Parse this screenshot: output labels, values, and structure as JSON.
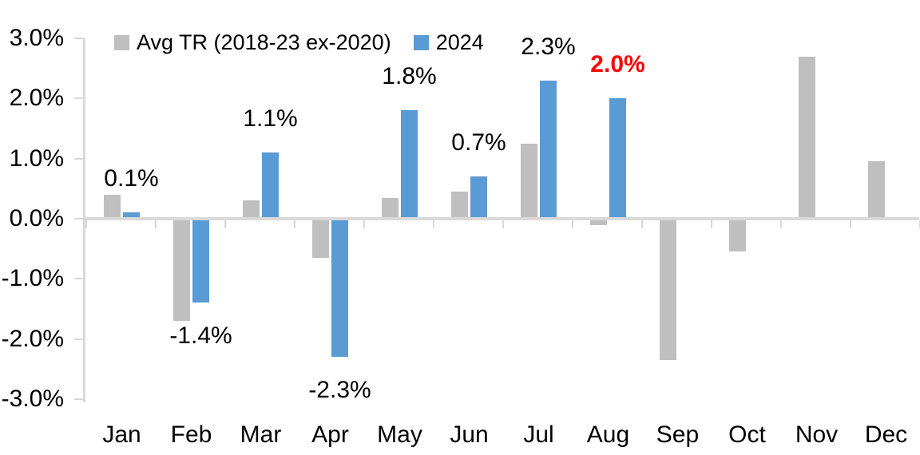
{
  "chart_data": {
    "type": "bar",
    "title": "",
    "xlabel": "",
    "ylabel": "",
    "categories": [
      "Jan",
      "Feb",
      "Mar",
      "Apr",
      "May",
      "Jun",
      "Jul",
      "Aug",
      "Sep",
      "Oct",
      "Nov",
      "Dec"
    ],
    "series": [
      {
        "name": "Avg TR (2018-23 ex-2020)",
        "color": "#BFBFBF",
        "values": [
          0.4,
          -1.7,
          0.3,
          -0.65,
          0.35,
          0.45,
          1.25,
          -0.1,
          -2.35,
          -0.55,
          2.7,
          0.95
        ]
      },
      {
        "name": "2024",
        "color": "#5B9BD5",
        "values": [
          0.1,
          -1.4,
          1.1,
          -2.3,
          1.8,
          0.7,
          2.3,
          2.0,
          null,
          null,
          null,
          null
        ]
      }
    ],
    "data_labels": {
      "attached_to_series": "2024",
      "texts": [
        "0.1%",
        "-1.4%",
        "1.1%",
        "-2.3%",
        "1.8%",
        "0.7%",
        "2.3%",
        "2.0%",
        null,
        null,
        null,
        null
      ],
      "default_color": "#000000",
      "highlight_index": 7,
      "highlight_color": "#FF0000",
      "highlight_bold": true
    },
    "y_axis": {
      "tick_labels": [
        "3.0%",
        "2.0%",
        "1.0%",
        "0.0%",
        "-1.0%",
        "-2.0%",
        "-3.0%"
      ],
      "min": -3.0,
      "max": 3.0,
      "step": 1.0,
      "format": "percent"
    },
    "ylim": [
      -3.0,
      3.0
    ],
    "grid": false,
    "legend_position": "top",
    "axis_color": "#D9D9D9",
    "background_color": "#FFFFFF"
  }
}
